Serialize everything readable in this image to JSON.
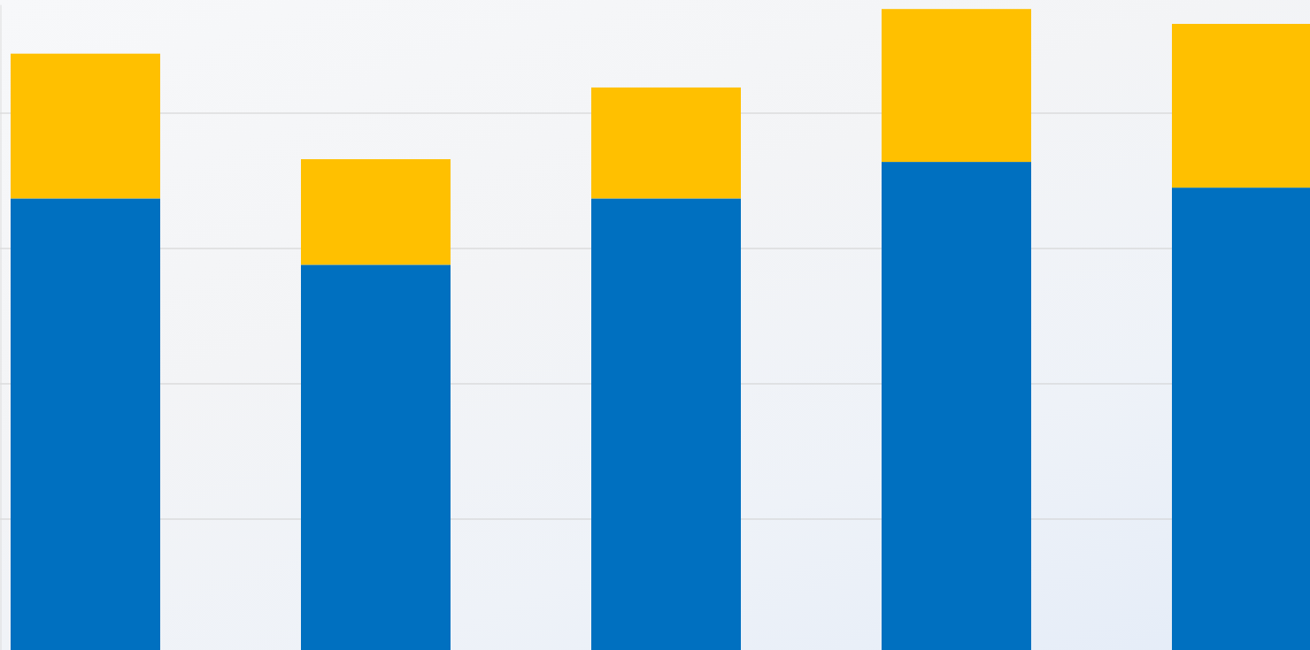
{
  "chart_data": {
    "type": "bar",
    "stacked": true,
    "grid": true,
    "tick_labels": false,
    "categories": [
      null,
      null,
      null,
      null,
      null
    ],
    "series": [
      {
        "color": "#0070C0",
        "values": [
          3.37,
          2.88,
          3.37,
          3.64,
          3.45
        ]
      },
      {
        "color": "#FFC000",
        "values": [
          1.07,
          0.78,
          0.82,
          1.13,
          1.21
        ]
      }
    ],
    "ylim": [
      0,
      4.8
    ],
    "yticks": [
      1,
      2,
      3,
      4
    ]
  }
}
